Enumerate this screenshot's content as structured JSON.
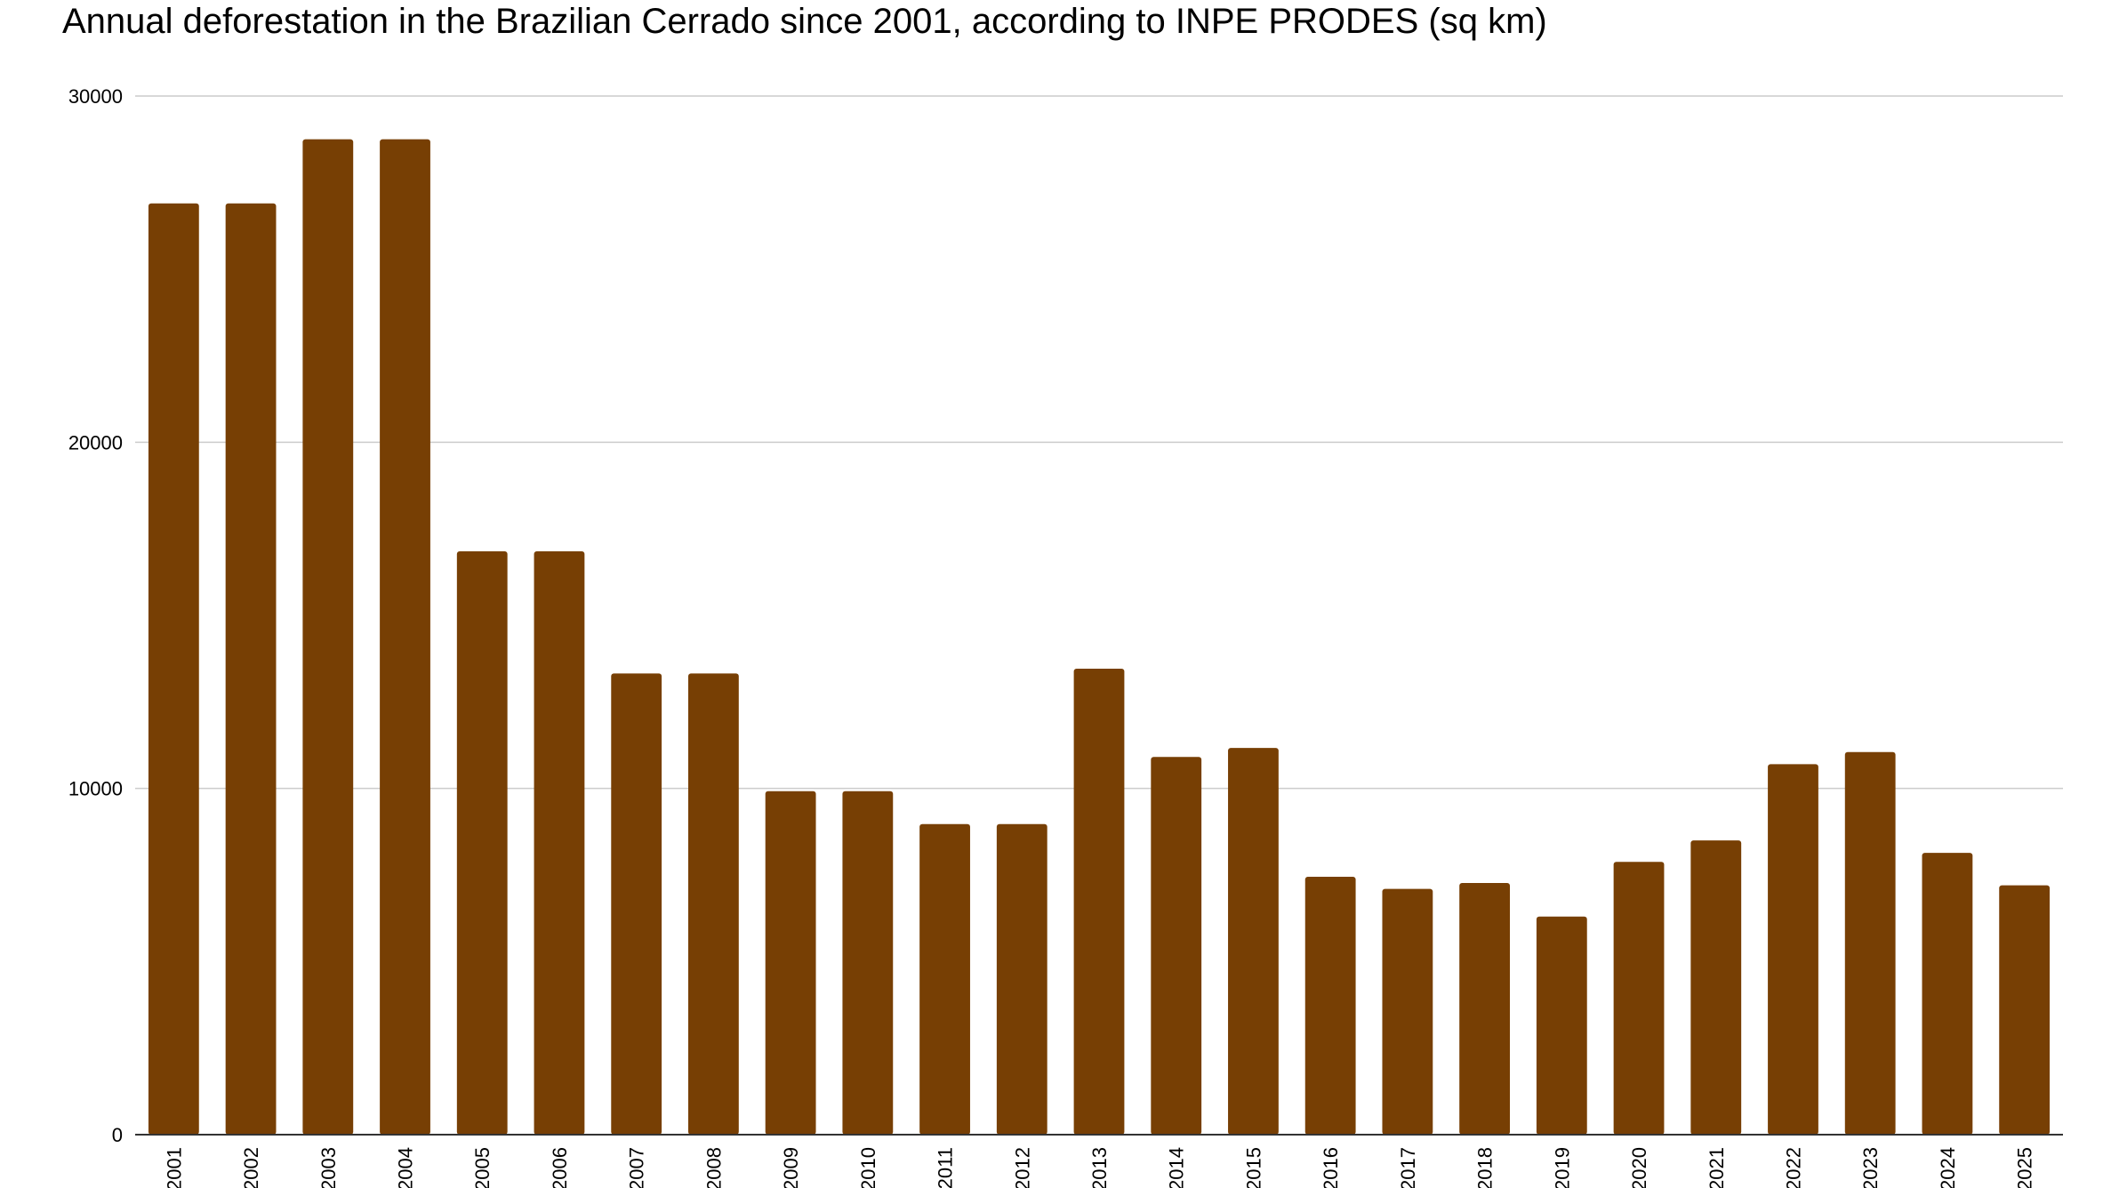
{
  "chart_data": {
    "type": "bar",
    "title": "Annual deforestation in the Brazilian Cerrado since 2001, according to INPE PRODES (sq km)",
    "xlabel": "",
    "ylabel": "",
    "ylim": [
      0,
      30000
    ],
    "yticks": [
      0,
      10000,
      20000,
      30000
    ],
    "grid": true,
    "legend": "none",
    "bar_color": "#773F04",
    "categories": [
      "2001",
      "2002",
      "2003",
      "2004",
      "2005",
      "2006",
      "2007",
      "2008",
      "2009",
      "2010",
      "2011",
      "2012",
      "2013",
      "2014",
      "2015",
      "2016",
      "2017",
      "2018",
      "2019",
      "2020",
      "2021",
      "2022",
      "2023",
      "2024",
      "2025"
    ],
    "values": [
      26900,
      26900,
      28750,
      28750,
      16850,
      16850,
      13320,
      13320,
      9920,
      9920,
      8970,
      8970,
      13460,
      10910,
      11170,
      7450,
      7100,
      7270,
      6300,
      7880,
      8500,
      10700,
      11050,
      8140,
      7200
    ]
  }
}
